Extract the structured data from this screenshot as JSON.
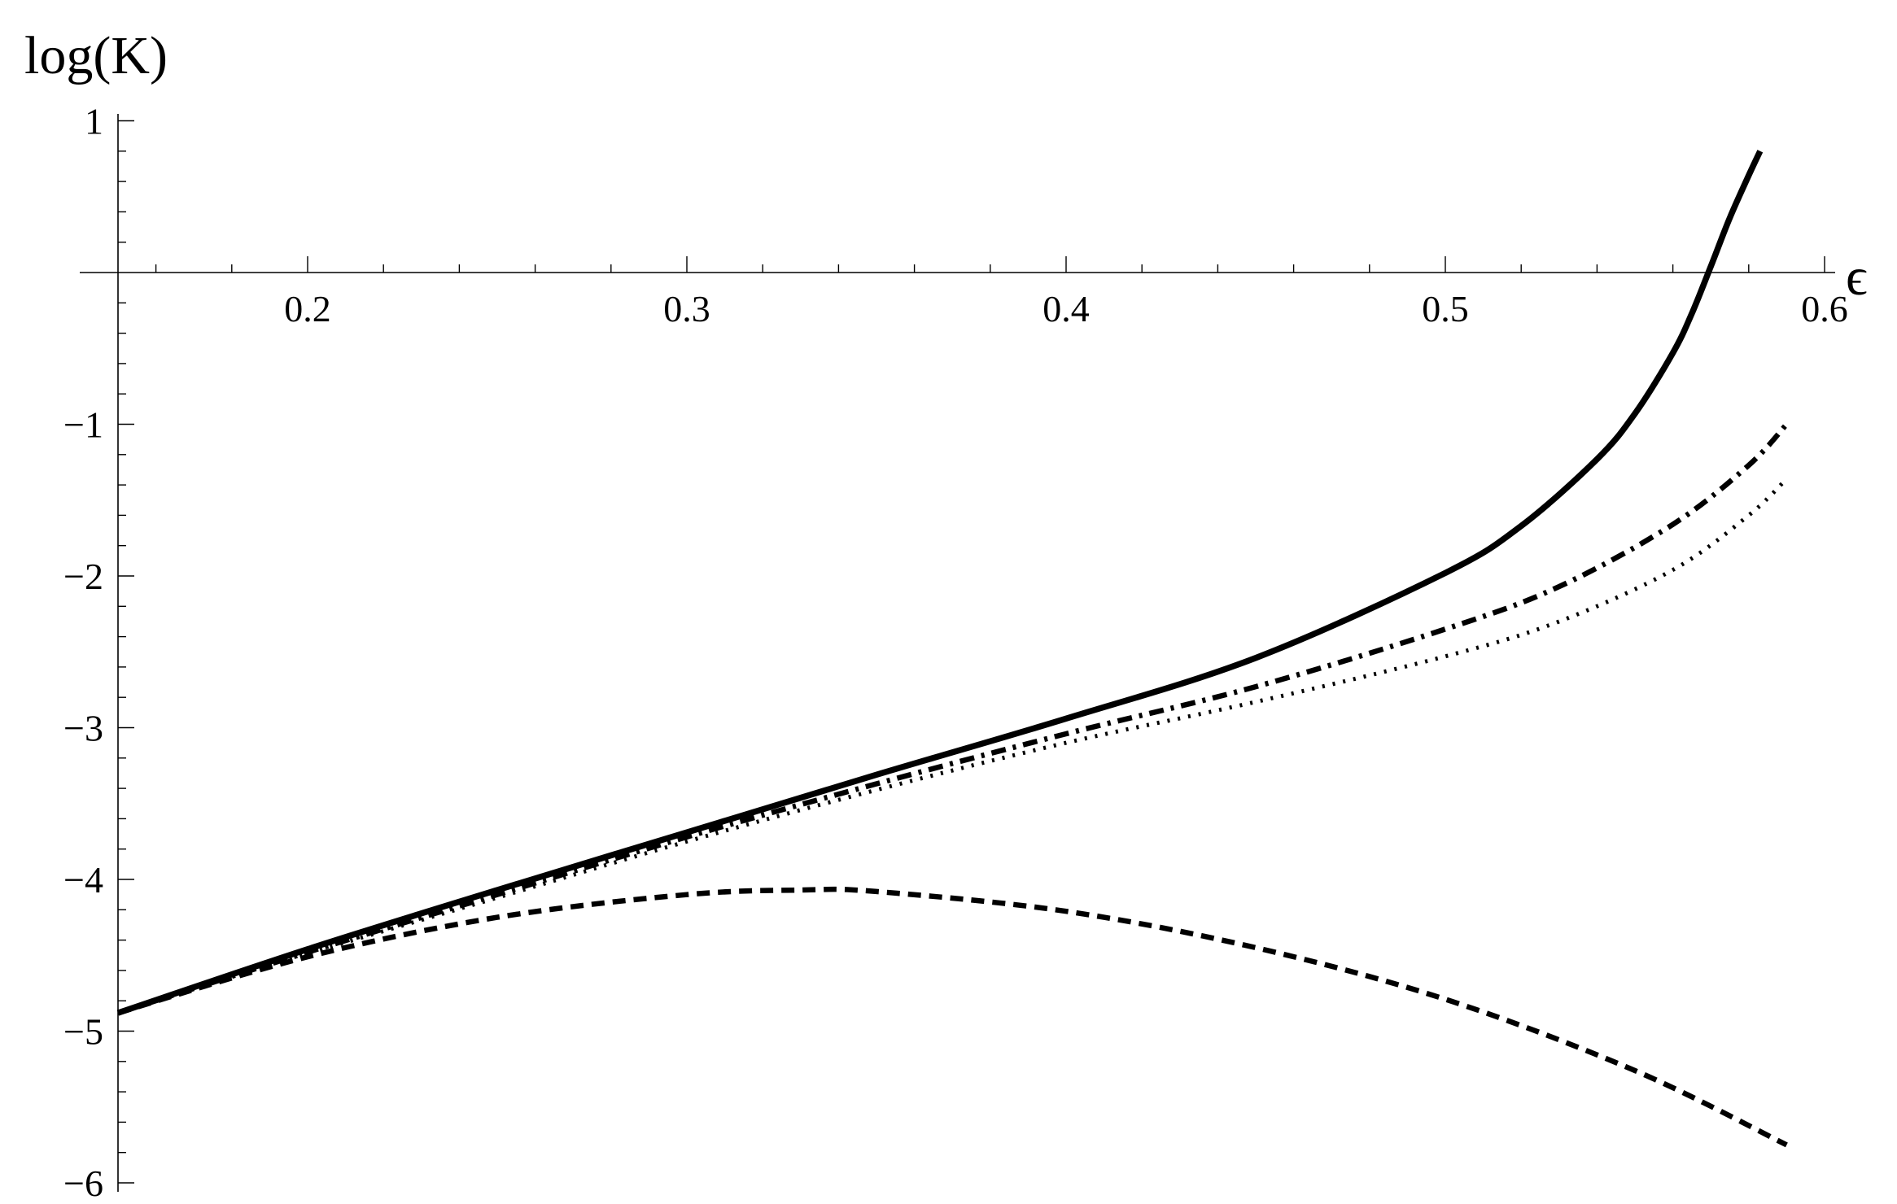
{
  "chart_data": {
    "type": "line",
    "xlabel": "ϵ",
    "ylabel": "log(K)",
    "xlim": [
      0.15,
      0.6
    ],
    "ylim": [
      -6.1,
      1.1
    ],
    "x_ticks": [
      0.2,
      0.3,
      0.4,
      0.5,
      0.6
    ],
    "x_tick_labels": [
      "0.2",
      "0.3",
      "0.4",
      "0.5",
      "0.6"
    ],
    "y_ticks": [
      1,
      -1,
      -2,
      -3,
      -4,
      -5,
      -6
    ],
    "y_tick_labels": [
      "1",
      "−1",
      "−2",
      "−3",
      "−4",
      "−5",
      "−6"
    ],
    "grid": false,
    "legend": "none",
    "series": [
      {
        "style": "solid",
        "x": [
          0.15,
          0.2,
          0.25,
          0.3,
          0.35,
          0.4,
          0.45,
          0.5,
          0.52,
          0.54,
          0.55,
          0.56,
          0.565,
          0.57,
          0.575,
          0.58,
          0.583
        ],
        "y": [
          -4.88,
          -4.46,
          -4.07,
          -3.69,
          -3.31,
          -2.94,
          -2.54,
          -1.98,
          -1.67,
          -1.23,
          -0.93,
          -0.53,
          -0.27,
          0.04,
          0.36,
          0.64,
          0.8
        ]
      },
      {
        "style": "dashdot",
        "x": [
          0.15,
          0.2,
          0.25,
          0.3,
          0.35,
          0.4,
          0.45,
          0.5,
          0.53,
          0.56,
          0.58,
          0.59
        ],
        "y": [
          -4.88,
          -4.48,
          -4.1,
          -3.72,
          -3.37,
          -3.04,
          -2.73,
          -2.35,
          -2.07,
          -1.66,
          -1.27,
          -1.0
        ]
      },
      {
        "style": "dotted",
        "x": [
          0.15,
          0.2,
          0.25,
          0.3,
          0.35,
          0.4,
          0.45,
          0.5,
          0.53,
          0.56,
          0.58,
          0.59
        ],
        "y": [
          -4.88,
          -4.49,
          -4.12,
          -3.75,
          -3.41,
          -3.1,
          -2.83,
          -2.53,
          -2.3,
          -1.96,
          -1.6,
          -1.36
        ]
      },
      {
        "style": "dashed",
        "x": [
          0.15,
          0.2,
          0.25,
          0.3,
          0.33,
          0.35,
          0.4,
          0.45,
          0.5,
          0.55,
          0.59
        ],
        "y": [
          -4.88,
          -4.51,
          -4.25,
          -4.1,
          -4.07,
          -4.08,
          -4.21,
          -4.45,
          -4.79,
          -5.26,
          -5.75
        ]
      }
    ]
  }
}
